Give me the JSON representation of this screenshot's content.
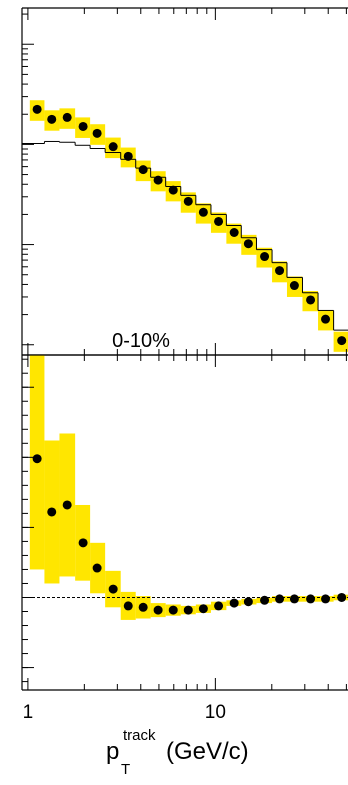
{
  "chart_data": [
    {
      "type": "scatter",
      "log_x": true,
      "log_y": true,
      "x": [
        1.12,
        1.34,
        1.62,
        1.97,
        2.34,
        2.85,
        3.43,
        4.12,
        4.95,
        5.96,
        7.17,
        8.63,
        10.4,
        12.6,
        15,
        18.3,
        22,
        26.4,
        32.2,
        38.7,
        47.2
      ],
      "xlim": [
        0.93,
        51
      ],
      "xticks": [
        1,
        10
      ],
      "xminor": [
        2,
        3,
        4,
        5,
        6,
        7,
        8,
        9,
        20,
        30,
        40,
        50
      ],
      "ylim": [
        7.9e-05,
        0.23
      ],
      "yticks": [
        0.0001,
        0.001,
        0.01,
        0.1
      ],
      "annotation": "0-10%",
      "series": [
        {
          "style": "step",
          "color": "#000000",
          "values": [
            0.0102,
            0.0107,
            0.0105,
            0.0098,
            0.0091,
            0.0083,
            0.0071,
            0.0058,
            0.0047,
            0.0038,
            0.0031,
            0.0025,
            0.002,
            0.00155,
            0.00117,
            0.00089,
            0.00066,
            0.00047,
            0.00033,
            0.00022,
            0.00014
          ]
        },
        {
          "style": "points",
          "color": "#000000",
          "band_color": "#ffe600",
          "values": [
            0.0224,
            0.0178,
            0.0186,
            0.0151,
            0.0129,
            0.0095,
            0.0076,
            0.0056,
            0.0044,
            0.0035,
            0.0027,
            0.0021,
            0.0017,
            0.00132,
            0.00102,
            0.00076,
            0.00055,
            0.00039,
            0.00028,
            0.00018,
            0.00011
          ],
          "errors": [
            0.0052,
            0.0041,
            0.0043,
            0.0035,
            0.003,
            0.0022,
            0.0017,
            0.0013,
            0.001,
            0.0008,
            0.00062,
            0.00048,
            0.00039,
            0.0003,
            0.00023,
            0.00017,
            0.00013,
            9e-05,
            6.4e-05,
            4.1e-05,
            2.5e-05
          ]
        }
      ]
    },
    {
      "type": "scatter",
      "log_x": true,
      "log_y": false,
      "tick_labels": true,
      "x": [
        1.12,
        1.34,
        1.62,
        1.97,
        2.34,
        2.85,
        3.43,
        4.12,
        4.95,
        5.96,
        7.17,
        8.63,
        10.4,
        12.6,
        15,
        18.3,
        22,
        26.4,
        32.2,
        38.7,
        47.2
      ],
      "xlim": [
        0.93,
        51
      ],
      "xticks": [
        1,
        10
      ],
      "xminor": [
        2,
        3,
        4,
        5,
        6,
        7,
        8,
        9,
        20,
        30,
        40,
        50
      ],
      "ylim": [
        0.34,
        2.73
      ],
      "yticks": [
        0.5,
        1,
        1.5,
        2,
        2.5
      ],
      "reference_line": 1,
      "x_label": {
        "main": "p",
        "sub": "T",
        "sup": "track",
        "unit": "(GeV/c)"
      },
      "series": [
        {
          "style": "points",
          "color": "#000000",
          "band_color": "#ffe600",
          "values": [
            1.99,
            1.61,
            1.66,
            1.39,
            1.21,
            1.06,
            0.94,
            0.93,
            0.91,
            0.91,
            0.91,
            0.92,
            0.94,
            0.96,
            0.97,
            0.98,
            0.99,
            0.99,
            0.99,
            0.99,
            1.0
          ],
          "errors": [
            0.79,
            0.51,
            0.51,
            0.27,
            0.18,
            0.13,
            0.1,
            0.08,
            0.05,
            0.04,
            0.03,
            0.03,
            0.03,
            0.02,
            0.02,
            0.02,
            0.02,
            0.02,
            0.02,
            0.02,
            0.02
          ]
        }
      ]
    }
  ]
}
